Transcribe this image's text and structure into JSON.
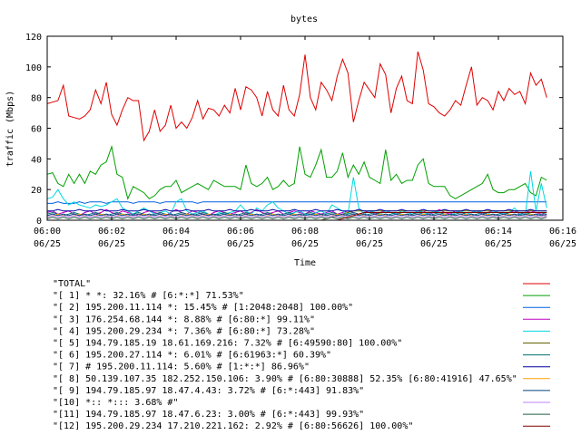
{
  "chart_data": {
    "type": "line",
    "title": "bytes",
    "xlabel": "Time",
    "ylabel": "traffic (Mbps)",
    "ylim": [
      0,
      120
    ],
    "yticks": [
      0,
      20,
      40,
      60,
      80,
      100,
      120
    ],
    "xlim_minutes": [
      0,
      16
    ],
    "xticks": [
      {
        "value": 0,
        "time": "06:00",
        "date": "06/25"
      },
      {
        "value": 2,
        "time": "06:02",
        "date": "06/25"
      },
      {
        "value": 4,
        "time": "06:04",
        "date": "06/25"
      },
      {
        "value": 6,
        "time": "06:06",
        "date": "06/25"
      },
      {
        "value": 8,
        "time": "06:08",
        "date": "06/25"
      },
      {
        "value": 10,
        "time": "06:10",
        "date": "06/25"
      },
      {
        "value": 12,
        "time": "06:12",
        "date": "06/25"
      },
      {
        "value": 14,
        "time": "06:14",
        "date": "06/25"
      },
      {
        "value": 16,
        "time": "06:16",
        "date": "06/25"
      }
    ],
    "x_start": 0,
    "x_step": 0.166667,
    "legend_position": "bottom",
    "grid": false,
    "series": [
      {
        "name": "\"TOTAL\"",
        "color": "#e00000",
        "values": [
          76,
          77,
          78,
          88,
          68,
          67,
          66,
          68,
          72,
          85,
          76,
          90,
          69,
          62,
          72,
          80,
          78,
          78,
          52,
          58,
          72,
          58,
          62,
          75,
          60,
          64,
          60,
          67,
          78,
          66,
          73,
          72,
          68,
          75,
          70,
          86,
          72,
          87,
          85,
          80,
          68,
          84,
          72,
          68,
          88,
          72,
          68,
          82,
          108,
          80,
          72,
          90,
          85,
          78,
          94,
          105,
          96,
          64,
          78,
          90,
          85,
          80,
          102,
          95,
          70,
          86,
          94,
          78,
          76,
          110,
          98,
          76,
          74,
          70,
          68,
          72,
          78,
          75,
          88,
          100,
          75,
          80,
          78,
          72,
          84,
          78,
          86,
          82,
          84,
          76,
          96,
          88,
          92,
          80
        ]
      },
      {
        "name": "\"[ 1] * *: 32.16% # [6:*:*] 71.53%\"",
        "color": "#00a000",
        "values": [
          30,
          31,
          24,
          22,
          30,
          24,
          30,
          24,
          32,
          30,
          36,
          38,
          48,
          30,
          28,
          14,
          22,
          20,
          18,
          14,
          16,
          20,
          22,
          22,
          26,
          18,
          20,
          22,
          24,
          22,
          20,
          26,
          24,
          22,
          22,
          22,
          20,
          36,
          24,
          22,
          24,
          28,
          20,
          22,
          26,
          22,
          24,
          48,
          30,
          28,
          36,
          46,
          28,
          28,
          32,
          44,
          28,
          36,
          30,
          38,
          28,
          26,
          24,
          46,
          26,
          30,
          24,
          26,
          26,
          36,
          40,
          24,
          22,
          22,
          22,
          16,
          14,
          16,
          18,
          20,
          22,
          24,
          30,
          20,
          18,
          18,
          20,
          20,
          22,
          24,
          18,
          16,
          28,
          26
        ]
      },
      {
        "name": "\"[ 2] 195.200.11.114 *: 15.45% # [1:2048:2048] 100.00%\"",
        "color": "#0060e0",
        "values": [
          11,
          11,
          12,
          11,
          11,
          11,
          12,
          11,
          12,
          12,
          12,
          11,
          12,
          12,
          12,
          12,
          11,
          12,
          12,
          12,
          12,
          11,
          12,
          12,
          12,
          12,
          12,
          12,
          11,
          12,
          12,
          12,
          12,
          12,
          12,
          12,
          12,
          12,
          12,
          12,
          12,
          12,
          12,
          12,
          12,
          12,
          12,
          12,
          12,
          12,
          12,
          12,
          12,
          12,
          12,
          12,
          12,
          12,
          12,
          12,
          12,
          12,
          12,
          12,
          12,
          12,
          12,
          12,
          12,
          12,
          12,
          12,
          12,
          12,
          12,
          12,
          12,
          12,
          12,
          12,
          12,
          12,
          12,
          12,
          12,
          12,
          12,
          12,
          12,
          12,
          12,
          12,
          12,
          12
        ]
      },
      {
        "name": "\"[ 3] 176.254.68.144 *: 8.88% # [6:80:*] 99.11%\"",
        "color": "#c000c0",
        "values": [
          5,
          6,
          4,
          5,
          6,
          4,
          3,
          5,
          6,
          4,
          5,
          7,
          5,
          4,
          6,
          5,
          4,
          3,
          5,
          6,
          5,
          4,
          3,
          5,
          7,
          5,
          4,
          6,
          5,
          4,
          3,
          5,
          6,
          5,
          4,
          5,
          6,
          4,
          5,
          7,
          5,
          4,
          5,
          6,
          4,
          5,
          6,
          5,
          4,
          6,
          5,
          4,
          5,
          6,
          4,
          5,
          6,
          5,
          4,
          5,
          6,
          4,
          5,
          6,
          5,
          4,
          6,
          5,
          4,
          5,
          6,
          4,
          5,
          7,
          5,
          4,
          6,
          5,
          4,
          5,
          6,
          4,
          5,
          6,
          5,
          4,
          5,
          6,
          4,
          5,
          6,
          5,
          4,
          3
        ]
      },
      {
        "name": "\"[ 4] 195.200.29.234 *: 7.36% # [6:80:*] 73.28%\"",
        "color": "#00d8e0",
        "values": [
          14,
          15,
          20,
          14,
          10,
          12,
          10,
          9,
          8,
          10,
          9,
          10,
          12,
          14,
          8,
          6,
          4,
          6,
          8,
          6,
          4,
          5,
          6,
          4,
          12,
          14,
          6,
          4,
          5,
          6,
          4,
          3,
          5,
          4,
          5,
          6,
          10,
          6,
          4,
          8,
          6,
          10,
          12,
          8,
          6,
          4,
          5,
          6,
          4,
          3,
          5,
          6,
          4,
          10,
          8,
          6,
          4,
          28,
          8,
          4,
          6,
          5,
          4,
          6,
          5,
          4,
          6,
          5,
          4,
          6,
          5,
          4,
          6,
          5,
          4,
          3,
          5,
          6,
          4,
          5,
          6,
          5,
          4,
          6,
          5,
          4,
          5,
          8,
          4,
          3,
          32,
          6,
          24,
          8
        ]
      },
      {
        "name": "\"[ 5] 194.79.185.19 18.61.169.216: 7.32% # [6:49590:80] 100.00%\"",
        "color": "#606000",
        "values": [
          0,
          0,
          0,
          0,
          0,
          0,
          0,
          0,
          0,
          0,
          0,
          0,
          0,
          0,
          0,
          0,
          0,
          0,
          0,
          0,
          0,
          0,
          0,
          0,
          0,
          0,
          0,
          0,
          0,
          0,
          0,
          0,
          0,
          0,
          0,
          0,
          0,
          0,
          0,
          0,
          0,
          0,
          0,
          0,
          0,
          0,
          0,
          0,
          0,
          0,
          0,
          0,
          1,
          2,
          3,
          4,
          5,
          6,
          6,
          6,
          6,
          6,
          6,
          6,
          6,
          6,
          6,
          6,
          6,
          6,
          6,
          6,
          6,
          6,
          6,
          6,
          6,
          6,
          6,
          6,
          6,
          6,
          6,
          6,
          6,
          6,
          6,
          6,
          6,
          6,
          6,
          6,
          6,
          6
        ]
      },
      {
        "name": "\"[ 6] 195.200.27.114 *: 6.01% # [6:61963:*] 60.39%\"",
        "color": "#007070",
        "values": [
          4,
          5,
          4,
          3,
          4,
          5,
          4,
          3,
          4,
          5,
          4,
          3,
          4,
          5,
          4,
          3,
          4,
          5,
          4,
          3,
          4,
          5,
          4,
          3,
          4,
          5,
          4,
          3,
          4,
          5,
          4,
          3,
          4,
          5,
          4,
          3,
          4,
          5,
          4,
          3,
          4,
          5,
          4,
          3,
          4,
          5,
          4,
          3,
          4,
          5,
          4,
          3,
          4,
          5,
          4,
          3,
          4,
          5,
          4,
          3,
          4,
          5,
          4,
          3,
          4,
          5,
          4,
          3,
          4,
          5,
          4,
          3,
          4,
          5,
          4,
          3,
          4,
          5,
          4,
          3,
          4,
          5,
          4,
          3,
          4,
          5,
          4,
          3,
          4,
          5,
          4,
          3,
          4,
          5
        ]
      },
      {
        "name": "\"[ 7] # 195.200.11.114: 5.60% # [1:*:*] 86.96%\"",
        "color": "#0000a0",
        "values": [
          6,
          6,
          7,
          6,
          6,
          6,
          7,
          6,
          6,
          6,
          7,
          6,
          6,
          6,
          7,
          6,
          6,
          6,
          7,
          6,
          6,
          6,
          7,
          6,
          6,
          6,
          7,
          6,
          6,
          6,
          7,
          6,
          6,
          6,
          7,
          6,
          6,
          6,
          7,
          6,
          6,
          6,
          7,
          6,
          6,
          6,
          7,
          6,
          6,
          6,
          7,
          6,
          6,
          6,
          7,
          6,
          6,
          6,
          7,
          6,
          6,
          6,
          7,
          6,
          6,
          6,
          7,
          6,
          6,
          6,
          7,
          6,
          6,
          6,
          7,
          6,
          6,
          6,
          7,
          6,
          6,
          6,
          7,
          6,
          6,
          6,
          7,
          6,
          6,
          6,
          7,
          6,
          6,
          6
        ]
      },
      {
        "name": "\"[ 8] 50.139.107.35 182.252.150.106: 3.90% # [6:80:30888] 52.35% [6:80:41916] 47.65%\"",
        "color": "#ffa000",
        "values": [
          2,
          3,
          4,
          3,
          2,
          3,
          4,
          3,
          2,
          3,
          4,
          3,
          2,
          3,
          4,
          3,
          2,
          3,
          4,
          3,
          2,
          3,
          4,
          3,
          2,
          3,
          4,
          3,
          2,
          3,
          4,
          3,
          2,
          3,
          4,
          3,
          2,
          3,
          4,
          3,
          2,
          3,
          4,
          3,
          2,
          3,
          4,
          3,
          2,
          3,
          4,
          3,
          2,
          3,
          4,
          3,
          2,
          3,
          4,
          3,
          2,
          3,
          4,
          3,
          2,
          3,
          4,
          3,
          2,
          3,
          4,
          3,
          2,
          3,
          4,
          3,
          2,
          3,
          4,
          3,
          2,
          3,
          4,
          3,
          2,
          3,
          4,
          3,
          2,
          3,
          4,
          3,
          2,
          3
        ]
      },
      {
        "name": "\"[ 9] 194.79.185.97 18.47.4.43: 3.72% # [6:*:443] 91.83%\"",
        "color": "#004080",
        "values": [
          3,
          4,
          3,
          4,
          3,
          4,
          3,
          4,
          3,
          4,
          3,
          4,
          3,
          4,
          3,
          4,
          3,
          4,
          3,
          4,
          3,
          4,
          3,
          4,
          3,
          4,
          3,
          4,
          3,
          4,
          3,
          4,
          3,
          4,
          3,
          4,
          3,
          4,
          3,
          4,
          3,
          4,
          3,
          4,
          3,
          4,
          3,
          4,
          3,
          4,
          3,
          4,
          3,
          4,
          3,
          4,
          3,
          4,
          3,
          4,
          3,
          4,
          3,
          4,
          3,
          4,
          3,
          4,
          3,
          4,
          3,
          4,
          3,
          4,
          3,
          4,
          3,
          4,
          3,
          4,
          3,
          4,
          3,
          4,
          3,
          4,
          3,
          4,
          3,
          4,
          3,
          4,
          3,
          4
        ]
      },
      {
        "name": "\"[10] *:: *::: 3.68% #\"",
        "color": "#c080ff",
        "values": [
          2,
          3,
          2,
          3,
          2,
          3,
          2,
          3,
          2,
          3,
          2,
          3,
          2,
          3,
          2,
          3,
          2,
          3,
          2,
          3,
          2,
          3,
          2,
          3,
          2,
          3,
          2,
          3,
          2,
          3,
          2,
          3,
          2,
          3,
          2,
          3,
          2,
          3,
          2,
          3,
          2,
          3,
          2,
          3,
          2,
          3,
          2,
          3,
          2,
          3,
          2,
          3,
          2,
          3,
          2,
          3,
          2,
          3,
          2,
          3,
          2,
          3,
          2,
          3,
          2,
          3,
          2,
          3,
          2,
          3,
          2,
          3,
          2,
          3,
          2,
          3,
          2,
          3,
          2,
          3,
          2,
          3,
          2,
          3,
          2,
          3,
          2,
          3,
          2,
          3,
          2,
          3,
          2,
          3
        ]
      },
      {
        "name": "\"[11] 194.79.185.97 18.47.6.23: 3.00% # [6:*:443] 99.93%\"",
        "color": "#206040",
        "values": [
          1,
          2,
          1,
          2,
          1,
          2,
          1,
          2,
          1,
          2,
          1,
          2,
          1,
          2,
          1,
          2,
          1,
          2,
          1,
          2,
          1,
          2,
          1,
          2,
          1,
          2,
          1,
          2,
          1,
          2,
          1,
          2,
          1,
          2,
          1,
          2,
          1,
          2,
          1,
          2,
          1,
          2,
          1,
          2,
          1,
          2,
          1,
          2,
          1,
          2,
          1,
          2,
          1,
          2,
          1,
          2,
          1,
          2,
          1,
          2,
          1,
          2,
          1,
          2,
          1,
          2,
          1,
          2,
          1,
          2,
          1,
          2,
          1,
          2,
          1,
          2,
          1,
          2,
          1,
          2,
          1,
          2,
          1,
          2,
          1,
          2,
          1,
          2,
          1,
          2,
          1,
          2,
          1,
          2
        ]
      },
      {
        "name": "\"[12] 195.200.29.234 17.210.221.162: 2.92% # [6:80:56626] 100.00%\"",
        "color": "#800000",
        "values": [
          0,
          0,
          0,
          0,
          0,
          0,
          0,
          0,
          0,
          0,
          0,
          0,
          0,
          0,
          0,
          0,
          0,
          0,
          0,
          0,
          0,
          0,
          0,
          0,
          0,
          0,
          0,
          0,
          0,
          0,
          0,
          0,
          0,
          0,
          0,
          0,
          0,
          0,
          0,
          0,
          0,
          0,
          0,
          0,
          0,
          0,
          0,
          0,
          0,
          0,
          0,
          0,
          0,
          0,
          0,
          1,
          2,
          3,
          4,
          5,
          5,
          5,
          5,
          5,
          5,
          5,
          5,
          5,
          5,
          5,
          5,
          5,
          5,
          5,
          5,
          5,
          5,
          5,
          5,
          5,
          5,
          5,
          5,
          5,
          5,
          5,
          5,
          5,
          5,
          5,
          5,
          5,
          5,
          5
        ]
      }
    ]
  }
}
